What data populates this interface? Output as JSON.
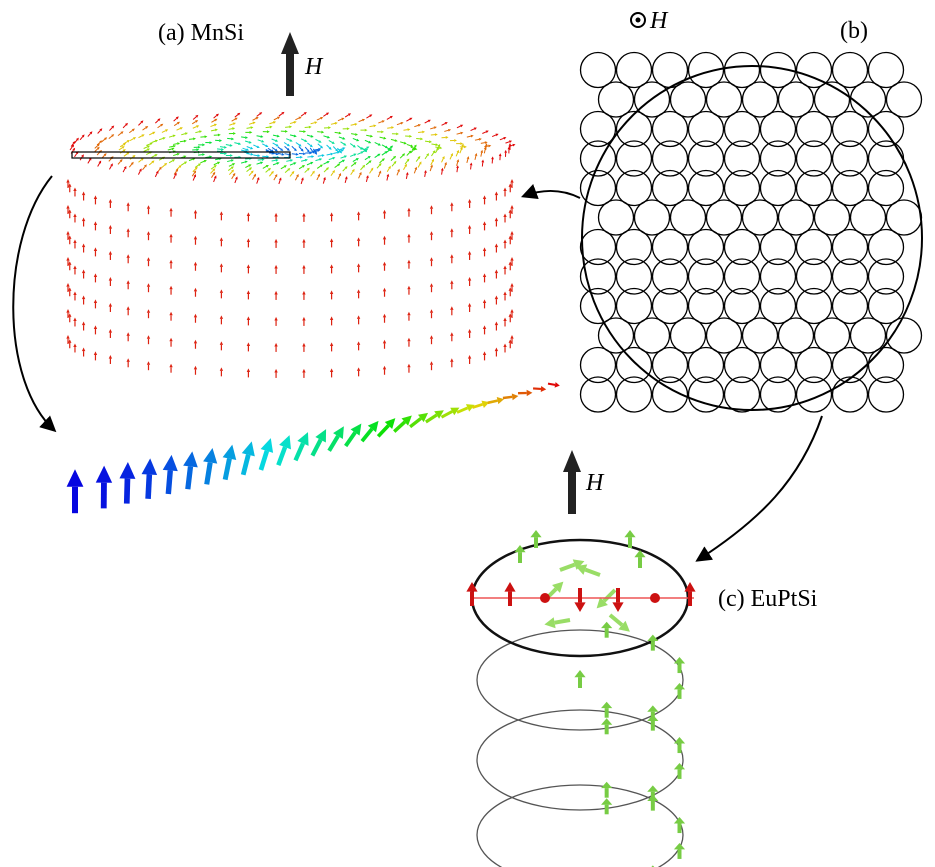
{
  "panels": [
    {
      "label": "(a) MnSi",
      "field": "H"
    },
    {
      "label": "(b)",
      "field": "H"
    },
    {
      "label": "(c) EuPtSi",
      "field": "H"
    }
  ]
}
